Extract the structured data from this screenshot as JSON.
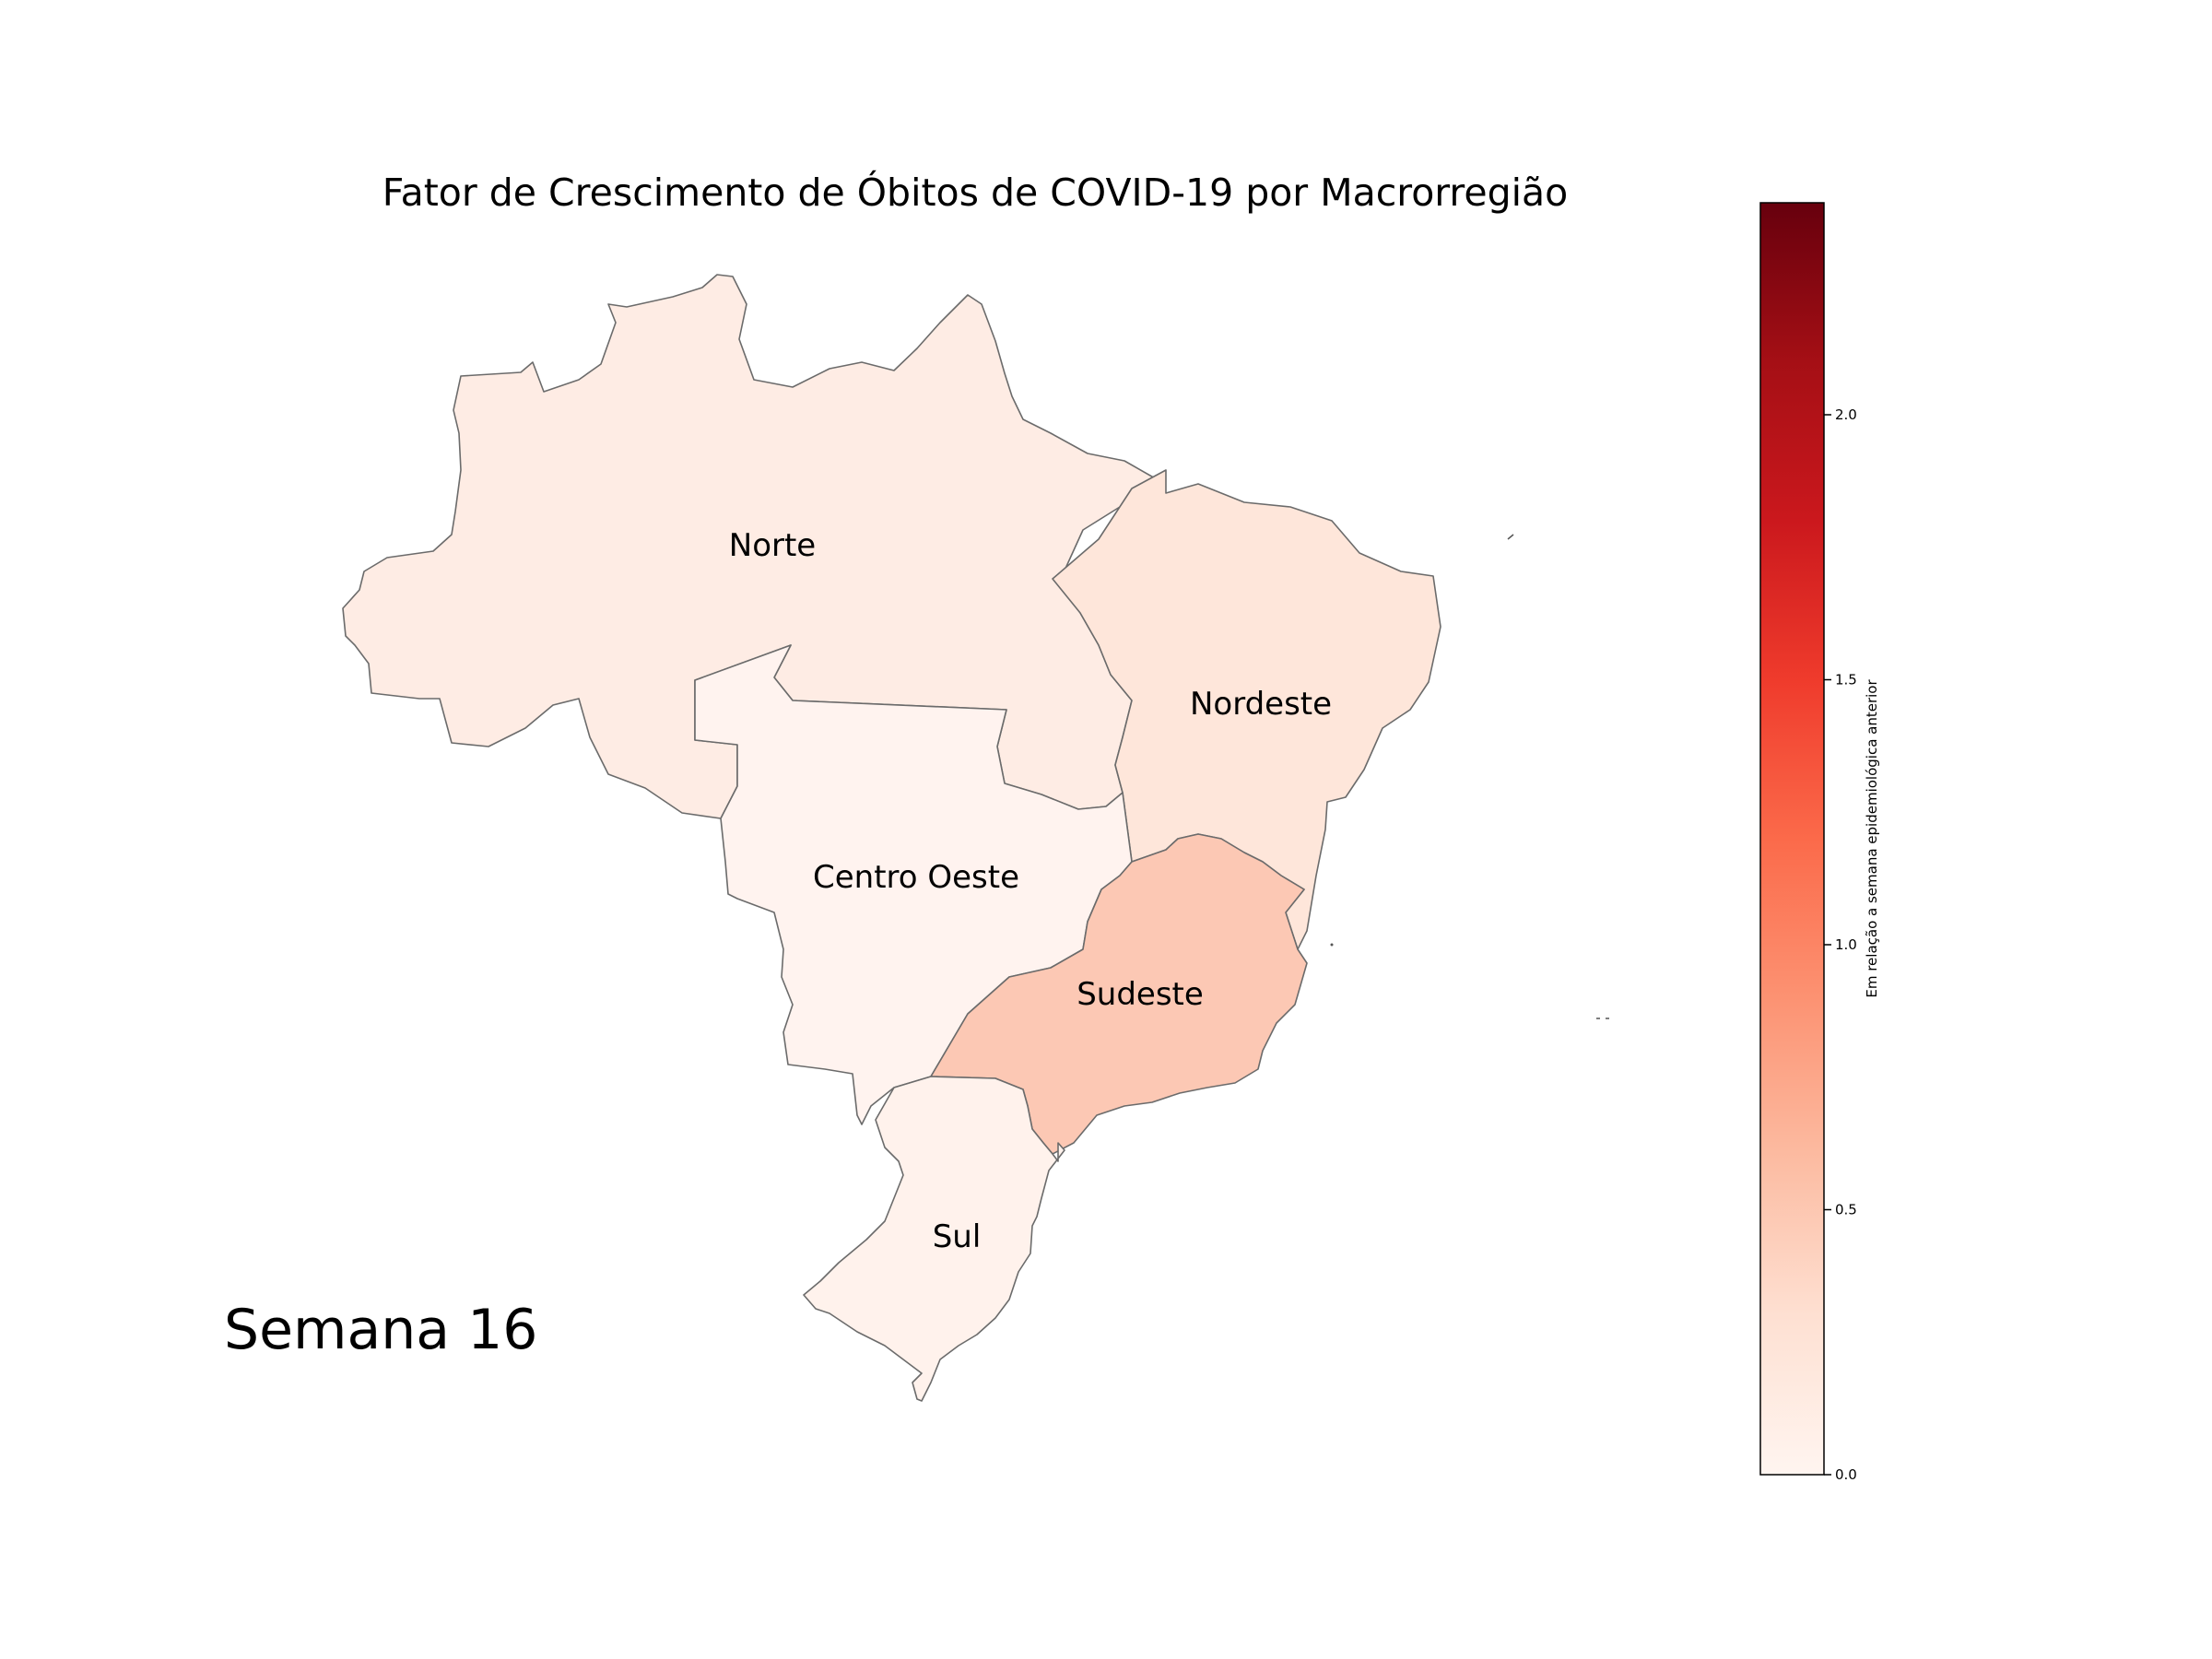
{
  "title": "Fator de Crescimento de Óbitos de COVID-19 por Macrorregião",
  "week_label": "Semana 16",
  "colorbar": {
    "label": "Em relação a semana epidemiológica anterior",
    "colormap": "Reds",
    "range": [
      0.0,
      2.4
    ],
    "ticks": [
      "0.0",
      "0.5",
      "1.0",
      "1.5",
      "2.0"
    ],
    "tick_values": [
      0.0,
      0.5,
      1.0,
      1.5,
      2.0
    ],
    "stops": [
      "#fff5f0",
      "#fee0d2",
      "#fcbba1",
      "#fc9272",
      "#fb6a4a",
      "#ef3b2c",
      "#cb181d",
      "#a50f15",
      "#67000d"
    ]
  },
  "chart_data": {
    "type": "choropleth",
    "title": "Fator de Crescimento de Óbitos de COVID-19 por Macrorregião",
    "regions": [
      {
        "name": "Norte",
        "value": 0.1,
        "color": "#feece4"
      },
      {
        "name": "Nordeste",
        "value": 0.18,
        "color": "#fee6da"
      },
      {
        "name": "Centro Oeste",
        "value": 0.02,
        "color": "#fff3ef"
      },
      {
        "name": "Sudeste",
        "value": 0.45,
        "color": "#fcc8b4"
      },
      {
        "name": "Sul",
        "value": 0.04,
        "color": "#fff2ec"
      }
    ]
  }
}
